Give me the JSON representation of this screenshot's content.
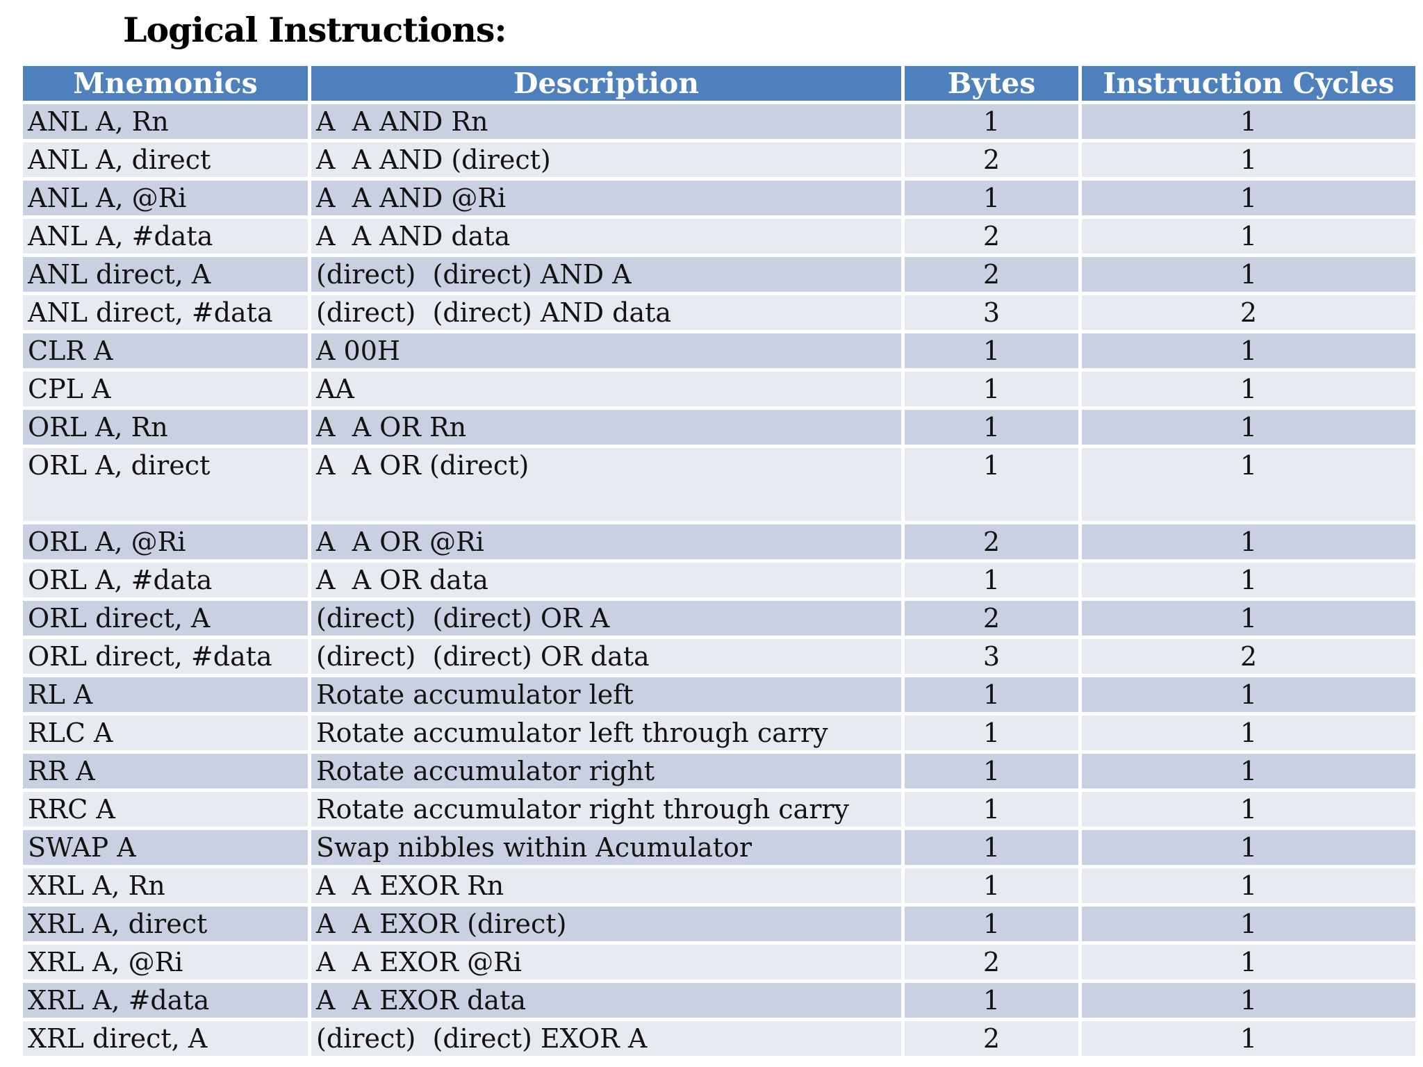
{
  "title": "Logical Instructions:",
  "table": {
    "columns": [
      "Mnemonics",
      "Description",
      "Bytes",
      "Instruction Cycles"
    ],
    "rows": [
      {
        "mnemonic": "ANL A, Rn",
        "description": "A  A AND Rn",
        "bytes": "1",
        "cycles": "1",
        "tall": false
      },
      {
        "mnemonic": "ANL A, direct",
        "description": "A  A AND (direct)",
        "bytes": "2",
        "cycles": "1",
        "tall": false
      },
      {
        "mnemonic": "ANL A, @Ri",
        "description": "A  A AND @Ri",
        "bytes": "1",
        "cycles": "1",
        "tall": false
      },
      {
        "mnemonic": "ANL A, #data",
        "description": "A  A AND data",
        "bytes": "2",
        "cycles": "1",
        "tall": false
      },
      {
        "mnemonic": "ANL direct, A",
        "description": "(direct)  (direct) AND A",
        "bytes": "2",
        "cycles": "1",
        "tall": false
      },
      {
        "mnemonic": "ANL direct, #data",
        "description": "(direct)  (direct) AND data",
        "bytes": "3",
        "cycles": "2",
        "tall": false
      },
      {
        "mnemonic": "CLR A",
        "description": "A 00H",
        "bytes": "1",
        "cycles": "1",
        "tall": false
      },
      {
        "mnemonic": "CPL A",
        "description": "AA",
        "bytes": "1",
        "cycles": "1",
        "tall": false
      },
      {
        "mnemonic": "ORL A, Rn",
        "description": "A  A OR Rn",
        "bytes": "1",
        "cycles": "1",
        "tall": false
      },
      {
        "mnemonic": "ORL A, direct",
        "description": "A  A OR (direct)",
        "bytes": "1",
        "cycles": "1",
        "tall": true
      },
      {
        "mnemonic": "ORL A, @Ri",
        "description": "A  A OR @Ri",
        "bytes": "2",
        "cycles": "1",
        "tall": false
      },
      {
        "mnemonic": "ORL A, #data",
        "description": "A  A OR data",
        "bytes": "1",
        "cycles": "1",
        "tall": false
      },
      {
        "mnemonic": "ORL direct, A",
        "description": "(direct)  (direct) OR A",
        "bytes": "2",
        "cycles": "1",
        "tall": false
      },
      {
        "mnemonic": "ORL direct, #data",
        "description": "(direct)  (direct) OR data",
        "bytes": "3",
        "cycles": "2",
        "tall": false
      },
      {
        "mnemonic": "RL A",
        "description": "Rotate accumulator left",
        "bytes": "1",
        "cycles": "1",
        "tall": false
      },
      {
        "mnemonic": "RLC A",
        "description": "Rotate accumulator left through carry",
        "bytes": "1",
        "cycles": "1",
        "tall": false
      },
      {
        "mnemonic": "RR A",
        "description": "Rotate accumulator right",
        "bytes": "1",
        "cycles": "1",
        "tall": false
      },
      {
        "mnemonic": "RRC A",
        "description": "Rotate accumulator right through carry",
        "bytes": "1",
        "cycles": "1",
        "tall": false
      },
      {
        "mnemonic": "SWAP A",
        "description": "Swap nibbles within Acumulator",
        "bytes": "1",
        "cycles": "1",
        "tall": false
      },
      {
        "mnemonic": "XRL A, Rn",
        "description": "A  A EXOR Rn",
        "bytes": "1",
        "cycles": "1",
        "tall": false
      },
      {
        "mnemonic": "XRL A, direct",
        "description": "A  A EXOR (direct)",
        "bytes": "1",
        "cycles": "1",
        "tall": false
      },
      {
        "mnemonic": "XRL A, @Ri",
        "description": "A  A EXOR @Ri",
        "bytes": "2",
        "cycles": "1",
        "tall": false
      },
      {
        "mnemonic": "XRL A, #data",
        "description": "A  A EXOR data",
        "bytes": "1",
        "cycles": "1",
        "tall": false
      },
      {
        "mnemonic": "XRL direct, A",
        "description": "(direct)  (direct) EXOR A",
        "bytes": "2",
        "cycles": "1",
        "tall": false
      }
    ]
  },
  "colors": {
    "header_bg": "#4d80bc",
    "header_text": "#ffffff",
    "row_dark": "#c9d0e2",
    "row_light": "#e8eaf2",
    "body_text": "#121212",
    "page_bg": "#ffffff"
  }
}
